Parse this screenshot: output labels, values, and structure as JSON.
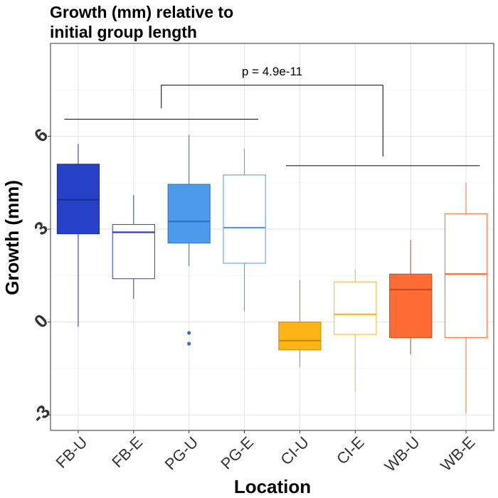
{
  "chart_data": {
    "type": "box",
    "title_lines": [
      "Growth (mm) relative to",
      "initial group length"
    ],
    "xlabel": "Location",
    "ylabel": "Growth (mm)",
    "ylim": [
      -3.5,
      9
    ],
    "yticks": [
      -3,
      0,
      3,
      6
    ],
    "grid": true,
    "categories": [
      "FB-U",
      "FB-E",
      "PG-U",
      "PG-E",
      "CI-U",
      "CI-E",
      "WB-U",
      "WB-E"
    ],
    "boxes": [
      {
        "label": "FB-U",
        "whisker_low": -0.15,
        "q1": 2.85,
        "median": 3.95,
        "q3": 5.1,
        "whisker_high": 5.75,
        "outliers": [],
        "fill": "#2741C6",
        "stroke": "#1A2F8F",
        "filled": true
      },
      {
        "label": "FB-E",
        "whisker_low": 0.75,
        "q1": 1.4,
        "median": 2.9,
        "q3": 3.15,
        "whisker_high": 4.1,
        "outliers": [],
        "fill": "#FFFFFF",
        "stroke": "#2741C6",
        "filled": false
      },
      {
        "label": "PG-U",
        "whisker_low": 1.8,
        "q1": 2.55,
        "median": 3.25,
        "q3": 4.45,
        "whisker_high": 6.05,
        "outliers": [
          -0.35,
          -0.7
        ],
        "fill": "#4C9BEA",
        "stroke": "#2F73C0",
        "filled": true
      },
      {
        "label": "PG-E",
        "whisker_low": 0.35,
        "q1": 1.9,
        "median": 3.05,
        "q3": 4.75,
        "whisker_high": 5.6,
        "outliers": [],
        "fill": "#FFFFFF",
        "stroke": "#4C9BEA",
        "filled": false
      },
      {
        "label": "CI-U",
        "whisker_low": -1.45,
        "q1": -0.9,
        "median": -0.6,
        "q3": 0.0,
        "whisker_high": 1.35,
        "outliers": [],
        "fill": "#FDB515",
        "stroke": "#C98A00",
        "filled": true
      },
      {
        "label": "CI-E",
        "whisker_low": -2.25,
        "q1": -0.4,
        "median": 0.25,
        "q3": 1.3,
        "whisker_high": 1.7,
        "outliers": [],
        "fill": "#FFFFFF",
        "stroke": "#FDB515",
        "filled": false
      },
      {
        "label": "WB-U",
        "whisker_low": -1.05,
        "q1": -0.5,
        "median": 1.05,
        "q3": 1.55,
        "whisker_high": 2.65,
        "outliers": [],
        "fill": "#FF6B35",
        "stroke": "#C94A1A",
        "filled": true
      },
      {
        "label": "WB-E",
        "whisker_low": -2.95,
        "q1": -0.5,
        "median": 1.55,
        "q3": 3.5,
        "whisker_high": 4.5,
        "outliers": [],
        "fill": "#FFFFFF",
        "stroke": "#FF6B35",
        "filled": false
      }
    ],
    "annotations": {
      "group_left": {
        "from": "FB-U",
        "to": "PG-E",
        "y": 6.55
      },
      "group_right": {
        "from": "CI-U",
        "to": "WB-E",
        "y": 5.05
      },
      "comparison": {
        "text": "p = 4.9e-11",
        "left_x_between": [
          "FB-E",
          "PG-U"
        ],
        "right_x_between": [
          "CI-E",
          "WB-U"
        ],
        "top_y": 7.65,
        "left_bottom_y": 6.9,
        "right_bottom_y": 5.35
      }
    }
  }
}
